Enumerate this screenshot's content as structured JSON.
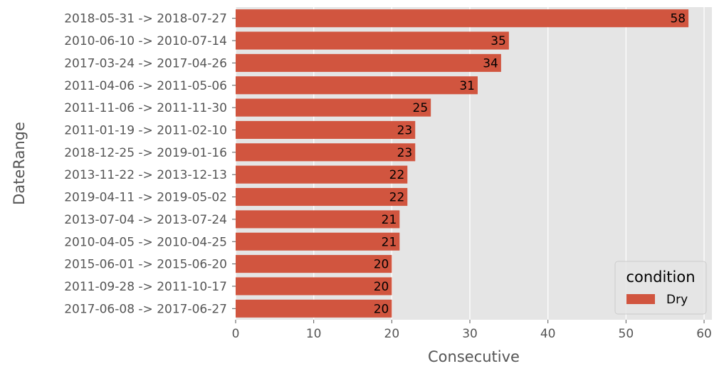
{
  "chart_data": {
    "type": "bar",
    "orientation": "horizontal",
    "xlabel": "Consecutive",
    "ylabel": "DateRange",
    "xlim": [
      0,
      61
    ],
    "xticks": [
      0,
      10,
      20,
      30,
      40,
      50,
      60
    ],
    "grid": true,
    "legend": {
      "title": "condition",
      "placement": "bottom-right",
      "entries": [
        "Dry"
      ]
    },
    "categories": [
      "2018-05-31 -> 2018-07-27",
      "2010-06-10 -> 2010-07-14",
      "2017-03-24 -> 2017-04-26",
      "2011-04-06 -> 2011-05-06",
      "2011-11-06 -> 2011-11-30",
      "2011-01-19 -> 2011-02-10",
      "2018-12-25 -> 2019-01-16",
      "2013-11-22 -> 2013-12-13",
      "2019-04-11 -> 2019-05-02",
      "2013-07-04 -> 2013-07-24",
      "2010-04-05 -> 2010-04-25",
      "2015-06-01 -> 2015-06-20",
      "2011-09-28 -> 2011-10-17",
      "2017-06-08 -> 2017-06-27"
    ],
    "series": [
      {
        "name": "Dry",
        "color": "#d1553f",
        "values": [
          58,
          35,
          34,
          31,
          25,
          23,
          23,
          22,
          22,
          21,
          21,
          20,
          20,
          20
        ]
      }
    ],
    "colors": {
      "background": "#e5e5e5",
      "grid": "#ffffff",
      "bar": "#d1553f",
      "text": "#555555"
    }
  }
}
